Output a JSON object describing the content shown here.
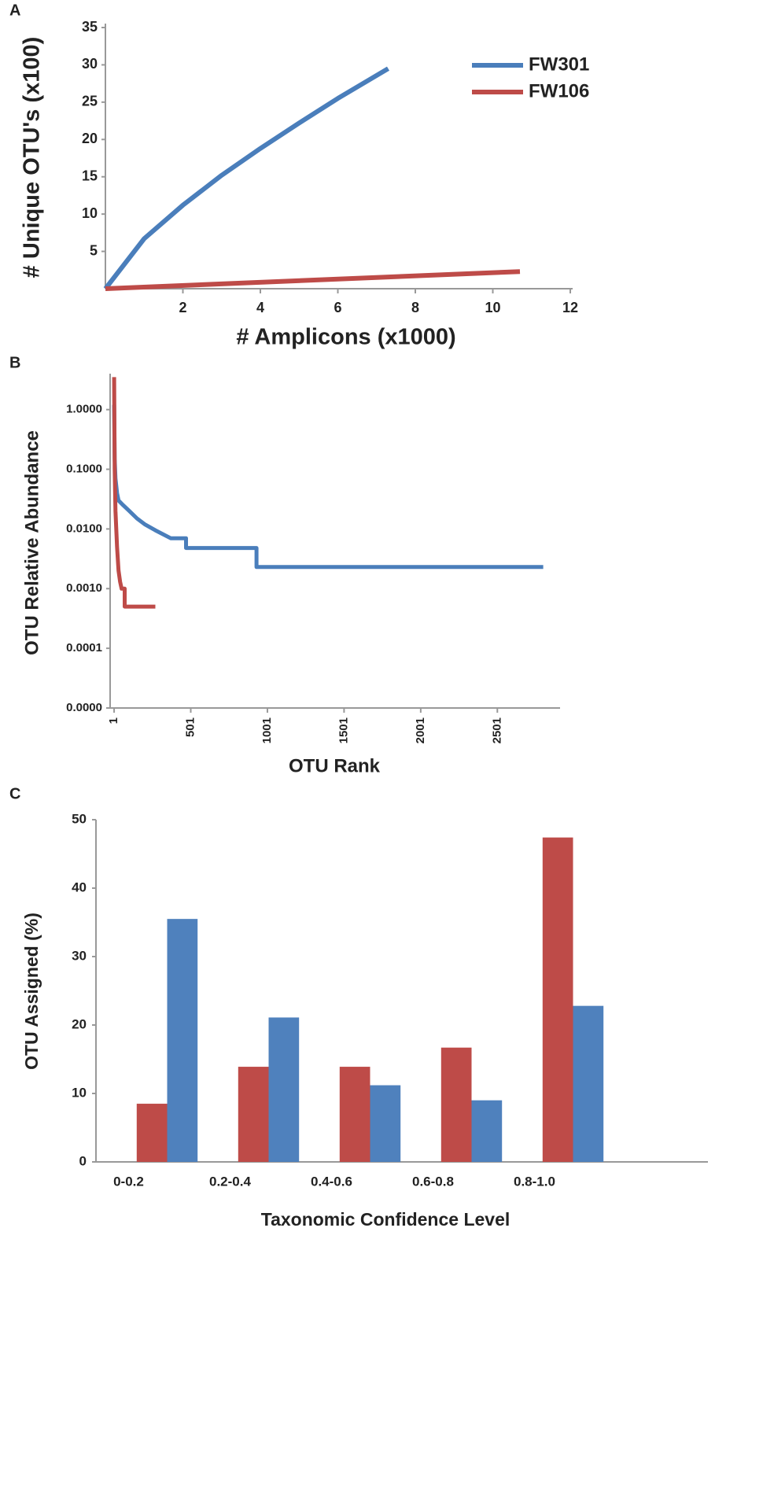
{
  "chart_data": [
    {
      "type": "line",
      "panel_label": "A",
      "xlabel": "# Amplicons (x1000)",
      "ylabel": "# Unique OTU's (x100)",
      "xlim": [
        0,
        12
      ],
      "xticks": [
        2,
        4,
        6,
        8,
        10,
        12
      ],
      "ylim": [
        0,
        35
      ],
      "yticks": [
        5,
        10,
        15,
        20,
        25,
        30,
        35
      ],
      "grid": false,
      "legend": "upper right",
      "series": [
        {
          "name": "FW301",
          "color": "#4a7ebb",
          "x": [
            0,
            1,
            2,
            3,
            4,
            5,
            6,
            7.3
          ],
          "values": [
            0,
            6.7,
            11.2,
            15.2,
            18.8,
            22.2,
            25.5,
            29.5
          ]
        },
        {
          "name": "FW106",
          "color": "#be4b48",
          "x": [
            0,
            10.7
          ],
          "values": [
            0,
            2.3
          ]
        }
      ]
    },
    {
      "type": "line",
      "panel_label": "B",
      "xlabel": "OTU Rank",
      "ylabel": "OTU Relative Abundance",
      "xlim": [
        -25,
        2910
      ],
      "xticks": [
        1,
        501,
        1001,
        1501,
        2001,
        2501
      ],
      "log_y": true,
      "ylim": [
        1e-05,
        4
      ],
      "yticks": [
        {
          "value": 1e-05,
          "label": "0.0000"
        },
        {
          "value": 0.0001,
          "label": "0.0001"
        },
        {
          "value": 0.001,
          "label": "0.0010"
        },
        {
          "value": 0.01,
          "label": "0.0100"
        },
        {
          "value": 0.1,
          "label": "0.1000"
        },
        {
          "value": 1,
          "label": "1.0000"
        }
      ],
      "grid": false,
      "series": [
        {
          "color": "#4a7ebb",
          "x": [
            1,
            5,
            10,
            20,
            30,
            60,
            100,
            150,
            200,
            270,
            370,
            470,
            470,
            930,
            930,
            2800
          ],
          "values": [
            1.2,
            0.15,
            0.07,
            0.04,
            0.03,
            0.025,
            0.02,
            0.015,
            0.012,
            0.0095,
            0.007,
            0.007,
            0.0048,
            0.0048,
            0.0023,
            0.0023
          ]
        },
        {
          "color": "#be4b48",
          "x": [
            1,
            5,
            10,
            20,
            30,
            40,
            50,
            70,
            70,
            270
          ],
          "values": [
            3.5,
            0.1,
            0.02,
            0.005,
            0.002,
            0.0013,
            0.001,
            0.001,
            0.0005,
            0.0005
          ]
        }
      ]
    },
    {
      "type": "bar",
      "panel_label": "C",
      "xlabel": "Taxonomic Confidence  Level",
      "ylabel": "OTU Assigned (%)",
      "categories": [
        "0-0.2",
        "0.2-0.4",
        "0.4-0.6",
        "0.6-0.8",
        "0.8-1.0"
      ],
      "ylim": [
        0,
        50
      ],
      "yticks": [
        0,
        10,
        20,
        30,
        40,
        50
      ],
      "grid": false,
      "series": [
        {
          "color": "#be4b48",
          "values": [
            8.5,
            13.9,
            13.9,
            16.7,
            47.4
          ]
        },
        {
          "color": "#4f81bd",
          "values": [
            35.5,
            21.1,
            11.2,
            9.0,
            22.8
          ]
        }
      ]
    }
  ]
}
